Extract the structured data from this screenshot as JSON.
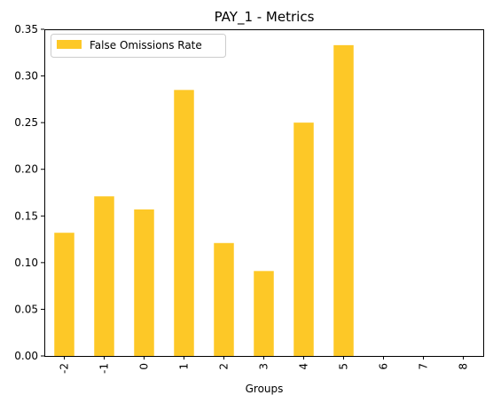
{
  "chart_data": {
    "type": "bar",
    "title": "PAY_1 - Metrics",
    "xlabel": "Groups",
    "ylabel": "",
    "categories": [
      "-2",
      "-1",
      "0",
      "1",
      "2",
      "3",
      "4",
      "5",
      "6",
      "7",
      "8"
    ],
    "series": [
      {
        "name": "False Omissions Rate",
        "color": "#fdc827",
        "values": [
          0.132,
          0.171,
          0.157,
          0.285,
          0.121,
          0.091,
          0.25,
          0.333,
          0,
          0,
          0
        ]
      }
    ],
    "ylim": [
      0,
      0.35
    ],
    "yticks": [
      0.0,
      0.05,
      0.1,
      0.15,
      0.2,
      0.25,
      0.3,
      0.35
    ],
    "ytick_labels": [
      "0.00",
      "0.05",
      "0.10",
      "0.15",
      "0.20",
      "0.25",
      "0.30",
      "0.35"
    ],
    "grid": false,
    "legend_position": "top-left"
  }
}
